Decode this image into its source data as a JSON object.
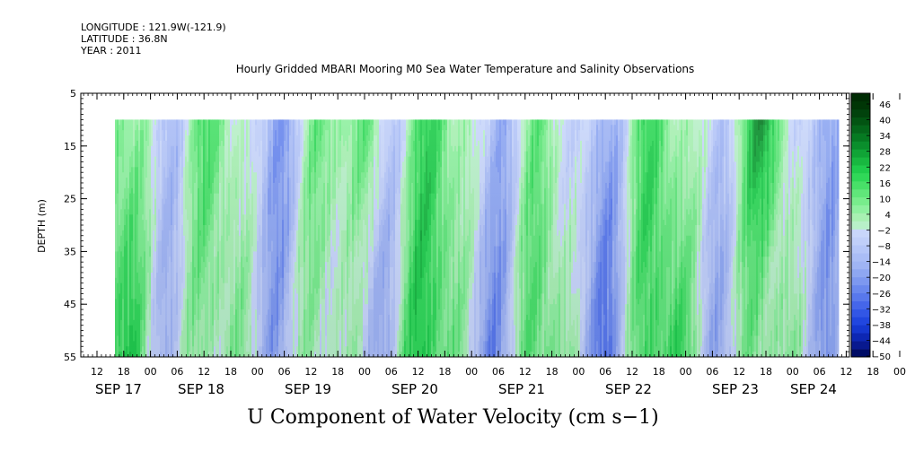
{
  "header": {
    "longitude": "LONGITUDE : 121.9W(-121.9)",
    "latitude": "LATITUDE : 36.8N",
    "year": "YEAR : 2011"
  },
  "chart_data": {
    "type": "heatmap",
    "title": "Hourly Gridded MBARI Mooring M0 Sea Water Temperature and Salinity Observations",
    "variable_label": "U Component of Water Velocity (cm s−1)",
    "ylabel": "DEPTH (m)",
    "ylim": [
      5,
      55
    ],
    "y_inverted": true,
    "y_ticks": [
      "5",
      "15",
      "25",
      "35",
      "45",
      "55"
    ],
    "x_hour_ticks": [
      "12",
      "18",
      "00",
      "06",
      "12",
      "18",
      "00",
      "06",
      "12",
      "18",
      "00",
      "06",
      "12",
      "18",
      "00",
      "06",
      "12",
      "18",
      "00",
      "06",
      "12",
      "18",
      "00",
      "06",
      "12",
      "18",
      "00",
      "06",
      "12",
      "18",
      "00",
      "06"
    ],
    "x_day_labels": [
      "SEP 17",
      "SEP 18",
      "SEP 19",
      "SEP 20",
      "SEP 21",
      "SEP 22",
      "SEP 23",
      "SEP 24"
    ],
    "data_depth_range_m": [
      10,
      55
    ],
    "colorbar": {
      "min": -50,
      "max": 52,
      "tick_labels": [
        "46",
        "40",
        "34",
        "28",
        "22",
        "16",
        "10",
        "4",
        "−2",
        "−8",
        "−14",
        "−20",
        "−26",
        "−32",
        "−38",
        "−44",
        "−50"
      ],
      "colors_low_to_high": [
        "#000c66",
        "#08198f",
        "#0d27b3",
        "#1537cf",
        "#2146df",
        "#3256e6",
        "#4566ea",
        "#5878ec",
        "#6a88ee",
        "#7d98f0",
        "#8ea7f2",
        "#9fb4f4",
        "#aabdf6",
        "#b5c6f8",
        "#c0cff9",
        "#c8d6fa",
        "#b8f0c8",
        "#a8f0b2",
        "#8ff0a0",
        "#78ec8c",
        "#60e67a",
        "#48e068",
        "#30d858",
        "#20cc4c",
        "#18b840",
        "#10a436",
        "#0a8e2c",
        "#067a22",
        "#04661a",
        "#025412",
        "#01420c",
        "#003606",
        "#002c04"
      ]
    },
    "day_profile": [
      {
        "day": "SEP 16",
        "hour": 14,
        "tendency": "weakly negative"
      },
      {
        "day": "SEP 17",
        "hour": 3,
        "tendency": "negative"
      },
      {
        "day": "SEP 18",
        "hour": 0,
        "tendency": "positive"
      },
      {
        "day": "SEP 19",
        "hour": 3,
        "tendency": "strongly negative"
      },
      {
        "day": "SEP 19",
        "hour": 12,
        "tendency": "positive near surface"
      },
      {
        "day": "SEP 20",
        "hour": 0,
        "tendency": "positive"
      },
      {
        "day": "SEP 21",
        "hour": 0,
        "tendency": "negative"
      },
      {
        "day": "SEP 21",
        "hour": 15,
        "tendency": "positive near surface"
      },
      {
        "day": "SEP 22",
        "hour": 6,
        "tendency": "negative"
      },
      {
        "day": "SEP 23",
        "hour": 3,
        "tendency": "strongly negative"
      },
      {
        "day": "SEP 23",
        "hour": 18,
        "tendency": "positive"
      },
      {
        "day": "SEP 24",
        "hour": 9,
        "tendency": "negative"
      }
    ]
  }
}
